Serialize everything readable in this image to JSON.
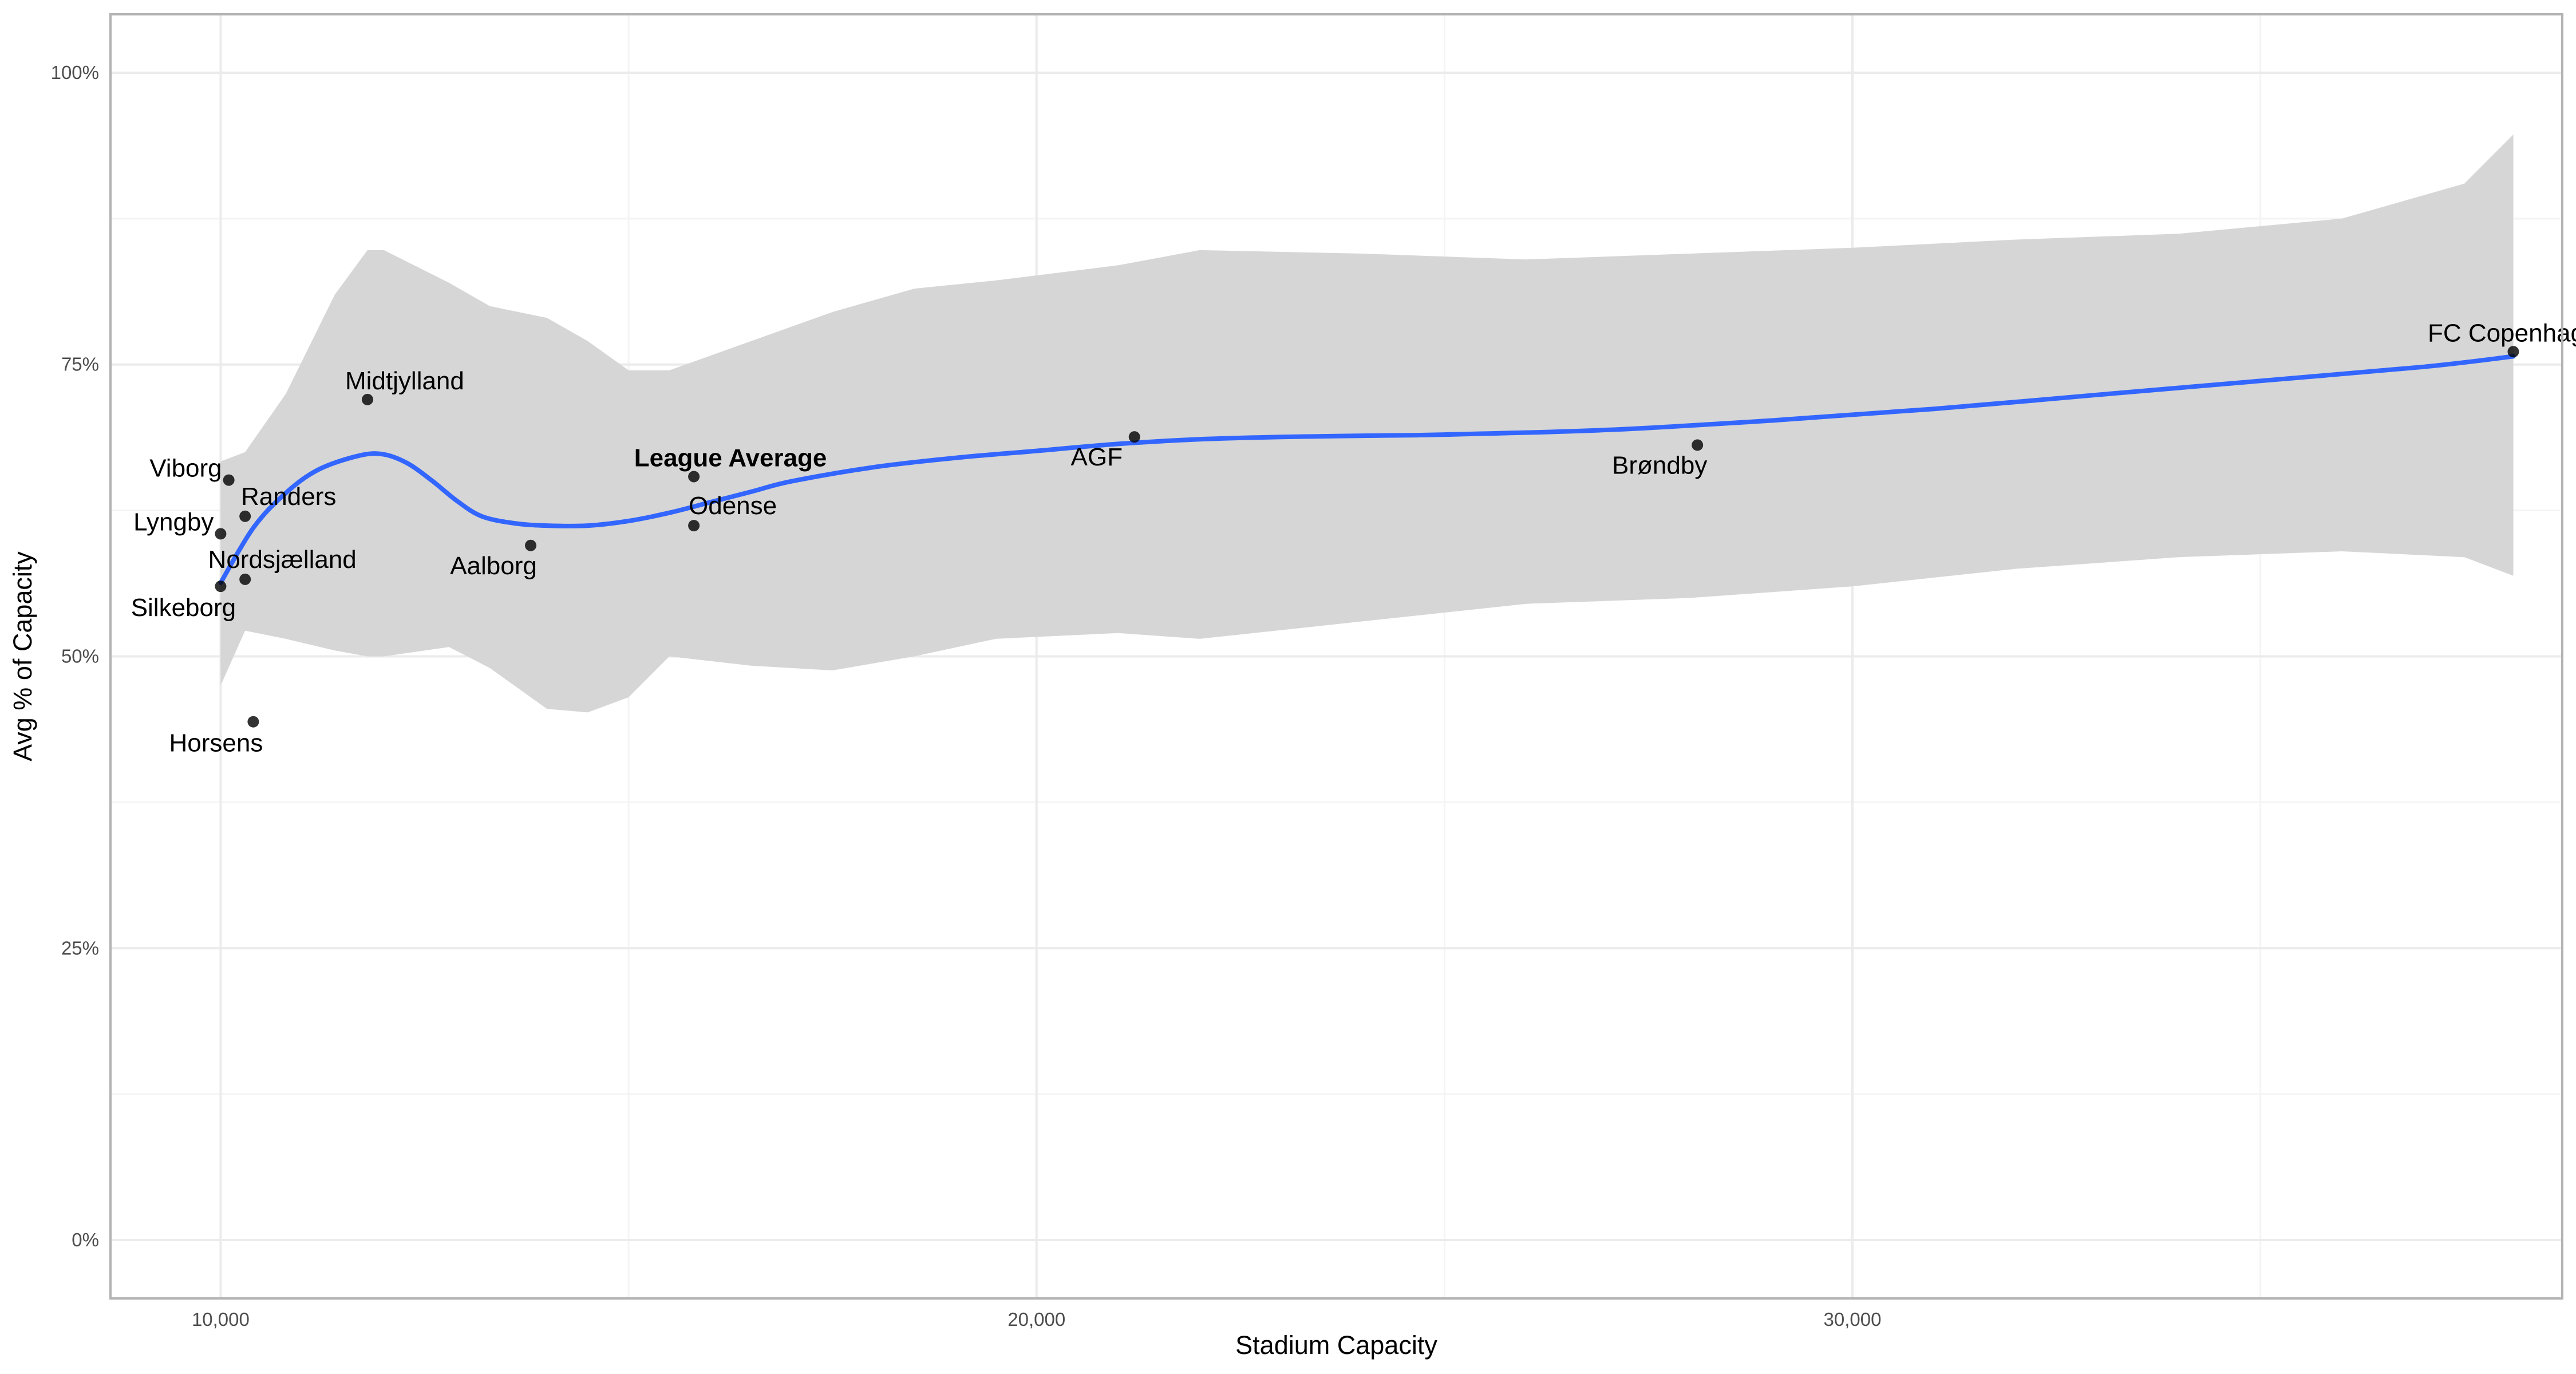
{
  "chart_data": {
    "type": "scatter",
    "xlabel": "Stadium Capacity",
    "ylabel": "Avg % of Capacity",
    "xlim": [
      8650,
      38700
    ],
    "ylim": [
      -0.05,
      1.05
    ],
    "x_ticks": [
      10000,
      20000,
      30000
    ],
    "x_tick_labels": [
      "10,000",
      "20,000",
      "30,000"
    ],
    "x_minor_ticks": [
      15000,
      25000,
      35000
    ],
    "y_ticks": [
      0,
      0.25,
      0.5,
      0.75,
      1.0
    ],
    "y_tick_labels": [
      "0%",
      "25%",
      "50%",
      "75%",
      "100%"
    ],
    "y_minor_ticks": [
      0.125,
      0.375,
      0.625,
      0.875
    ],
    "grid": true,
    "colors": {
      "panel_border": "#b3b3b3",
      "grid_major": "#ebebeb",
      "grid_minor": "#f4f4f4",
      "ribbon": "#d6d6d6",
      "smooth_line": "#3366ff",
      "point": "#000000"
    },
    "points": [
      {
        "label": "Viborg",
        "x": 10100,
        "y": 0.651,
        "bold": false,
        "label_pos": "left"
      },
      {
        "label": "Randers",
        "x": 10300,
        "y": 0.62,
        "bold": false,
        "label_pos": "above-right"
      },
      {
        "label": "Lyngby",
        "x": 10000,
        "y": 0.605,
        "bold": false,
        "label_pos": "left"
      },
      {
        "label": "Nordsjælland",
        "x": 10300,
        "y": 0.566,
        "bold": false,
        "label_pos": "above-right"
      },
      {
        "label": "Silkeborg",
        "x": 10000,
        "y": 0.56,
        "bold": false,
        "label_pos": "below-left"
      },
      {
        "label": "Horsens",
        "x": 10400,
        "y": 0.444,
        "bold": false,
        "label_pos": "below-left"
      },
      {
        "label": "Midtjylland",
        "x": 11800,
        "y": 0.72,
        "bold": false,
        "label_pos": "above-right"
      },
      {
        "label": "Aalborg",
        "x": 13800,
        "y": 0.595,
        "bold": false,
        "label_pos": "below-left"
      },
      {
        "label": "League Average",
        "x": 15800,
        "y": 0.654,
        "bold": true,
        "label_pos": "above"
      },
      {
        "label": "Odense",
        "x": 15800,
        "y": 0.612,
        "bold": false,
        "label_pos": "above-right"
      },
      {
        "label": "AGF",
        "x": 21200,
        "y": 0.688,
        "bold": false,
        "label_pos": "below-left"
      },
      {
        "label": "Brøndby",
        "x": 28100,
        "y": 0.681,
        "bold": false,
        "label_pos": "below-left"
      },
      {
        "label": "FC Copenhagen",
        "x": 38100,
        "y": 0.761,
        "bold": false,
        "label_pos": "above"
      }
    ],
    "smooth": {
      "x": [
        10000,
        10400,
        10800,
        11200,
        11700,
        12000,
        12300,
        12600,
        12900,
        13200,
        13600,
        14000,
        14500,
        15000,
        15500,
        16000,
        16500,
        17000,
        18000,
        19000,
        20000,
        21000,
        22000,
        23000,
        24000,
        25000,
        27000,
        29000,
        31000,
        33000,
        35000,
        37000,
        38100
      ],
      "y": [
        0.563,
        0.61,
        0.64,
        0.66,
        0.672,
        0.673,
        0.665,
        0.65,
        0.633,
        0.62,
        0.614,
        0.612,
        0.612,
        0.616,
        0.623,
        0.632,
        0.641,
        0.65,
        0.662,
        0.67,
        0.676,
        0.682,
        0.686,
        0.688,
        0.689,
        0.69,
        0.694,
        0.702,
        0.712,
        0.724,
        0.736,
        0.748,
        0.757
      ]
    },
    "ribbon": {
      "x": [
        10000,
        10300,
        10800,
        11400,
        11800,
        12000,
        12800,
        13300,
        14000,
        14500,
        15000,
        15500,
        16500,
        17500,
        18500,
        19500,
        21000,
        22000,
        24000,
        26000,
        28000,
        30000,
        32000,
        34000,
        36000,
        37500,
        38100
      ],
      "lower": [
        0.475,
        0.522,
        0.515,
        0.505,
        0.5,
        0.5,
        0.508,
        0.49,
        0.455,
        0.452,
        0.465,
        0.5,
        0.492,
        0.488,
        0.5,
        0.515,
        0.52,
        0.515,
        0.53,
        0.545,
        0.55,
        0.56,
        0.575,
        0.585,
        0.59,
        0.585,
        0.569
      ],
      "upper": [
        0.667,
        0.675,
        0.725,
        0.81,
        0.848,
        0.848,
        0.82,
        0.8,
        0.79,
        0.77,
        0.745,
        0.745,
        0.77,
        0.795,
        0.815,
        0.822,
        0.835,
        0.848,
        0.845,
        0.84,
        0.845,
        0.85,
        0.857,
        0.862,
        0.875,
        0.905,
        0.947
      ]
    }
  }
}
